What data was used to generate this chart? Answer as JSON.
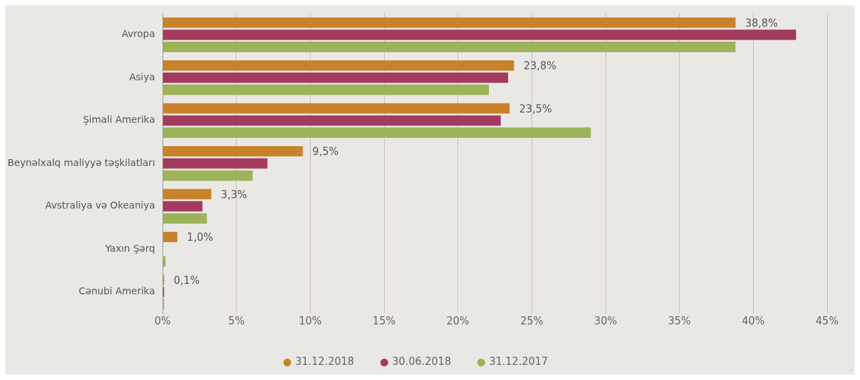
{
  "chart_data": {
    "type": "bar",
    "orientation": "horizontal",
    "categories": [
      "Avropa",
      "Asiya",
      "Şimali Amerika",
      "Beynəlxalq maliyyə təşkilatları",
      "Avstraliya və Okeaniya",
      "Yaxın Şərq",
      "Cənubi Amerika"
    ],
    "series": [
      {
        "name": "31.12.2018",
        "color": "#c8822a",
        "values": [
          38.8,
          23.8,
          23.5,
          9.5,
          3.3,
          1.0,
          0.1
        ],
        "value_labels": [
          "38,8%",
          "23,8%",
          "23,5%",
          "9,5%",
          "3,3%",
          "1,0%",
          "0,1%"
        ]
      },
      {
        "name": "30.06.2018",
        "color": "#a33b5e",
        "values": [
          42.9,
          23.4,
          22.9,
          7.1,
          2.7,
          0,
          0.1
        ]
      },
      {
        "name": "31.12.2017",
        "color": "#9cb35a",
        "values": [
          38.8,
          22.1,
          29.0,
          6.1,
          3.0,
          0.2,
          0.1
        ]
      }
    ],
    "xlim": [
      0,
      45
    ],
    "xticks": [
      {
        "value": 0,
        "label": "0%"
      },
      {
        "value": 5,
        "label": "5%"
      },
      {
        "value": 10,
        "label": "10%"
      },
      {
        "value": 15,
        "label": "15%"
      },
      {
        "value": 20,
        "label": "20%"
      },
      {
        "value": 25,
        "label": "25%"
      },
      {
        "value": 30,
        "label": "30%"
      },
      {
        "value": 35,
        "label": "35%"
      },
      {
        "value": 40,
        "label": "40%"
      },
      {
        "value": 45,
        "label": "45%"
      }
    ],
    "grid": "x",
    "legend": "bottom",
    "marker": "circle"
  }
}
